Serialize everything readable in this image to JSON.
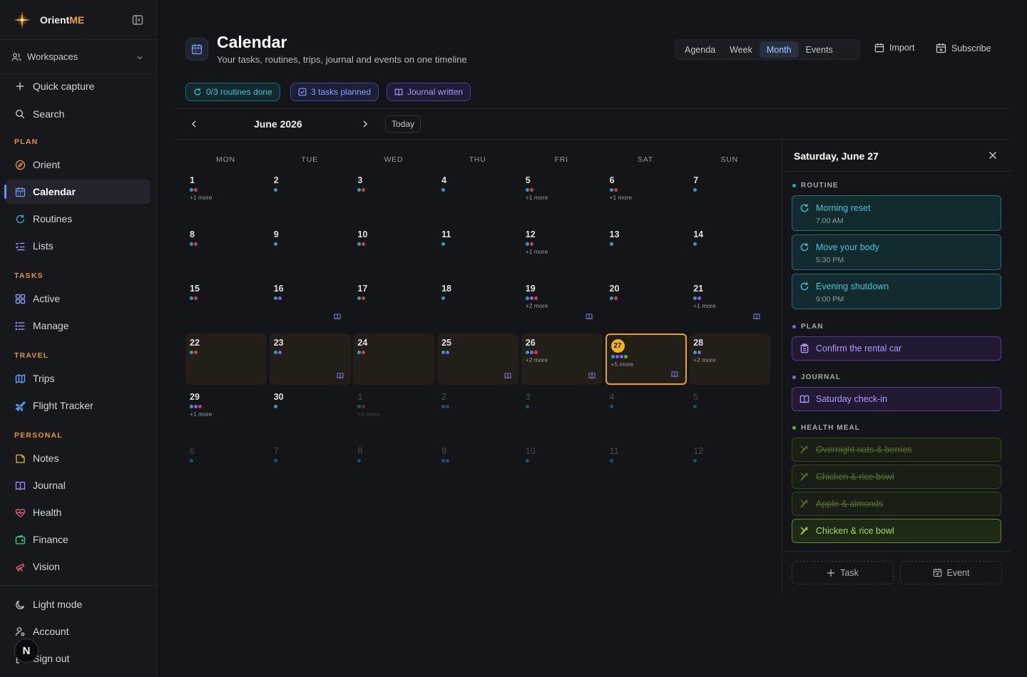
{
  "app": {
    "name_main": "Orient",
    "name_accent": "ME"
  },
  "sidebar": {
    "workspaces": "Workspaces",
    "quick_capture": "Quick capture",
    "search": "Search",
    "sections": {
      "plan": "PLAN",
      "tasks": "TASKS",
      "travel": "TRAVEL",
      "personal": "PERSONAL"
    },
    "items": {
      "orient": "Orient",
      "calendar": "Calendar",
      "routines": "Routines",
      "lists": "Lists",
      "active": "Active",
      "manage": "Manage",
      "trips": "Trips",
      "flight_tracker": "Flight Tracker",
      "notes": "Notes",
      "journal": "Journal",
      "health": "Health",
      "finance": "Finance",
      "vision": "Vision"
    },
    "light_mode": "Light mode",
    "account": "Account",
    "sign_out": "Sign out",
    "badge": "N"
  },
  "header": {
    "title": "Calendar",
    "subtitle": "Your tasks, routines, trips, journal and events on one timeline",
    "views": [
      "Agenda",
      "Week",
      "Month",
      "Events"
    ],
    "active_view": "Month",
    "import": "Import",
    "subscribe": "Subscribe"
  },
  "chips": {
    "routines": "0/3 routines done",
    "tasks": "3 tasks planned",
    "journal": "Journal written"
  },
  "calendar": {
    "month_label": "June 2026",
    "today_label": "Today",
    "weekdays": [
      "MON",
      "TUE",
      "WED",
      "THU",
      "FRI",
      "SAT",
      "SUN"
    ],
    "colors": {
      "t": "#1fa6b8",
      "r": "#e0393e",
      "v": "#8b5cf6",
      "g": "#57b82e"
    },
    "days": [
      {
        "n": "1",
        "dots": "tr",
        "more": "+1 more"
      },
      {
        "n": "2",
        "dots": "t"
      },
      {
        "n": "3",
        "dots": "tr"
      },
      {
        "n": "4",
        "dots": "t"
      },
      {
        "n": "5",
        "dots": "tr",
        "more": "+1 more"
      },
      {
        "n": "6",
        "dots": "tr",
        "more": "+1 more"
      },
      {
        "n": "7",
        "dots": "t"
      },
      {
        "n": "8",
        "dots": "tr"
      },
      {
        "n": "9",
        "dots": "t"
      },
      {
        "n": "10",
        "dots": "tr"
      },
      {
        "n": "11",
        "dots": "t"
      },
      {
        "n": "12",
        "dots": "tr",
        "more": "+1 more"
      },
      {
        "n": "13",
        "dots": "t"
      },
      {
        "n": "14",
        "dots": "t"
      },
      {
        "n": "15",
        "dots": "tr"
      },
      {
        "n": "16",
        "dots": "tv"
      },
      {
        "n": "17",
        "dots": "tr"
      },
      {
        "n": "18",
        "dots": "t"
      },
      {
        "n": "19",
        "dots": "tvr",
        "more": "+2 more"
      },
      {
        "n": "20",
        "dots": "tr"
      },
      {
        "n": "21",
        "dots": "tv",
        "more": "+1 more"
      },
      {
        "n": "22",
        "dots": "tr",
        "hl": true
      },
      {
        "n": "23",
        "dots": "tv",
        "hl": true,
        "journal": true
      },
      {
        "n": "24",
        "dots": "tr",
        "hl": true
      },
      {
        "n": "25",
        "dots": "tv",
        "hl": true,
        "journal": true
      },
      {
        "n": "26",
        "dots": "tvr",
        "more": "+2 more",
        "hl": true,
        "journal": true
      },
      {
        "n": "27",
        "dots": "tvvg",
        "more": "+5 more",
        "selected": true,
        "journal": true
      },
      {
        "n": "28",
        "dots": "tv",
        "more": "+2 more",
        "hl": true
      },
      {
        "n": "29",
        "dots": "tvr",
        "more": "+1 more"
      },
      {
        "n": "30",
        "dots": "t"
      },
      {
        "n": "1",
        "dots": "tr",
        "more": "+1 more",
        "dim": true
      },
      {
        "n": "2",
        "dots": "tv",
        "dim": true
      },
      {
        "n": "3",
        "dots": "t",
        "dim": true
      },
      {
        "n": "4",
        "dots": "t",
        "dim": true
      },
      {
        "n": "5",
        "dots": "t",
        "dim": true
      },
      {
        "n": "6",
        "dots": "t",
        "dim": true
      },
      {
        "n": "7",
        "dots": "t",
        "dim": true
      },
      {
        "n": "8",
        "dots": "t",
        "dim": true
      },
      {
        "n": "9",
        "dots": "tv",
        "dim": true
      },
      {
        "n": "10",
        "dots": "t",
        "dim": true
      },
      {
        "n": "11",
        "dots": "t",
        "dim": true
      },
      {
        "n": "12",
        "dots": "t",
        "dim": true
      }
    ],
    "week_journal_markers": [
      2,
      3
    ]
  },
  "detail": {
    "title": "Saturday, June 27",
    "groups": {
      "routine": "ROUTINE",
      "plan": "PLAN",
      "journal": "JOURNAL",
      "meal": "HEALTH MEAL"
    },
    "routines": [
      {
        "title": "Morning reset",
        "time": "7:00 AM"
      },
      {
        "title": "Move your body",
        "time": "5:30 PM"
      },
      {
        "title": "Evening shutdown",
        "time": "9:00 PM"
      }
    ],
    "plan": [
      "Confirm the rental car"
    ],
    "journal": [
      "Saturday check-in"
    ],
    "meals": [
      {
        "title": "Overnight oats & berries",
        "done": true
      },
      {
        "title": "Chicken & rice bowl",
        "done": true
      },
      {
        "title": "Apple & almonds",
        "done": true
      },
      {
        "title": "Chicken & rice bowl",
        "done": false
      }
    ],
    "add_task": "Task",
    "add_event": "Event"
  }
}
